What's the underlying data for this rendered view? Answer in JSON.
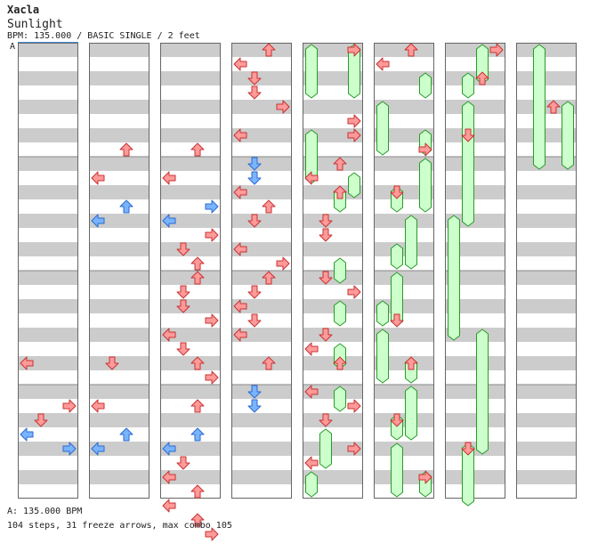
{
  "header": {
    "artist": "Xacla",
    "title": "Sunlight",
    "meta": "BPM: 135.000 / BASIC SINGLE / 2 feet"
  },
  "marker": "A",
  "footer": {
    "bpm_line": "A: 135.000 BPM",
    "stats_line": "104 steps, 31 freeze arrows, max combo 105"
  },
  "colors": {
    "arrow_red": "#ff9a9a",
    "arrow_red_stroke": "#c83232",
    "arrow_blue": "#7ab4ff",
    "arrow_blue_stroke": "#2a6ad0",
    "freeze_fill": "#ccffcc",
    "freeze_stroke": "#2a9a2a",
    "stripe_grey": "#cccccc",
    "marker_line": "#4a90d9"
  },
  "notes": [
    [
      0,
      0,
      "L",
      22,
      "r"
    ],
    [
      0,
      0,
      "R",
      25,
      "r"
    ],
    [
      0,
      0,
      "D",
      26,
      "r"
    ],
    [
      0,
      0,
      "L",
      27,
      "b"
    ],
    [
      0,
      0,
      "R",
      28,
      "b"
    ],
    [
      0,
      1,
      "U",
      7,
      "r"
    ],
    [
      0,
      1,
      "L",
      9,
      "r"
    ],
    [
      0,
      1,
      "U",
      11,
      "b"
    ],
    [
      0,
      1,
      "L",
      12,
      "b"
    ],
    [
      0,
      1,
      "D",
      22,
      "r"
    ],
    [
      0,
      1,
      "L",
      25,
      "r"
    ],
    [
      0,
      1,
      "U",
      27,
      "b"
    ],
    [
      0,
      1,
      "L",
      28,
      "b"
    ],
    [
      0,
      2,
      "U",
      7,
      "r"
    ],
    [
      0,
      2,
      "L",
      9,
      "r"
    ],
    [
      0,
      2,
      "R",
      11,
      "b"
    ],
    [
      0,
      2,
      "L",
      12,
      "b"
    ],
    [
      0,
      2,
      "R",
      13,
      "r"
    ],
    [
      0,
      2,
      "D",
      14,
      "r"
    ],
    [
      0,
      2,
      "U",
      15,
      "r"
    ],
    [
      0,
      2,
      "U",
      16,
      "r"
    ],
    [
      0,
      2,
      "D",
      17,
      "r"
    ],
    [
      0,
      2,
      "D",
      18,
      "r"
    ],
    [
      0,
      2,
      "R",
      19,
      "r"
    ],
    [
      0,
      2,
      "L",
      20,
      "r"
    ],
    [
      0,
      2,
      "D",
      21,
      "r"
    ],
    [
      0,
      2,
      "U",
      22,
      "r"
    ],
    [
      0,
      2,
      "R",
      23,
      "r"
    ],
    [
      0,
      2,
      "U",
      25,
      "r"
    ],
    [
      0,
      2,
      "U",
      27,
      "b"
    ],
    [
      0,
      2,
      "L",
      28,
      "b"
    ],
    [
      0,
      2,
      "D",
      29,
      "r"
    ],
    [
      0,
      2,
      "L",
      30,
      "r"
    ],
    [
      0,
      2,
      "U",
      31,
      "r"
    ],
    [
      0,
      2,
      "L",
      32,
      "r"
    ],
    [
      0,
      2,
      "U",
      33,
      "r"
    ],
    [
      0,
      2,
      "R",
      34,
      "r"
    ],
    [
      0,
      3,
      "U",
      0,
      "r"
    ],
    [
      0,
      3,
      "L",
      1,
      "r"
    ],
    [
      0,
      3,
      "D",
      2,
      "r"
    ],
    [
      0,
      3,
      "D",
      3,
      "r"
    ],
    [
      0,
      3,
      "R",
      4,
      "r"
    ],
    [
      0,
      3,
      "L",
      6,
      "r"
    ],
    [
      0,
      3,
      "D",
      8,
      "b"
    ],
    [
      0,
      3,
      "D",
      9,
      "b"
    ],
    [
      0,
      3,
      "L",
      10,
      "r"
    ],
    [
      0,
      3,
      "U",
      11,
      "r"
    ],
    [
      0,
      3,
      "D",
      12,
      "r"
    ],
    [
      0,
      3,
      "L",
      14,
      "r"
    ],
    [
      0,
      3,
      "R",
      15,
      "r"
    ],
    [
      0,
      3,
      "U",
      16,
      "r"
    ],
    [
      0,
      3,
      "D",
      17,
      "r"
    ],
    [
      0,
      3,
      "L",
      18,
      "r"
    ],
    [
      0,
      3,
      "D",
      19,
      "r"
    ],
    [
      0,
      3,
      "L",
      20,
      "r"
    ],
    [
      0,
      3,
      "U",
      22,
      "r"
    ],
    [
      0,
      3,
      "D",
      24,
      "b"
    ],
    [
      0,
      3,
      "D",
      25,
      "b"
    ],
    [
      1,
      0,
      "R",
      0,
      "r"
    ],
    [
      1,
      1,
      "D",
      7,
      "r"
    ],
    [
      1,
      1,
      "D",
      8,
      "r"
    ],
    [
      1,
      2,
      "U",
      9,
      "r"
    ],
    [
      1,
      3,
      "L",
      10,
      "r"
    ],
    [
      1,
      3,
      "D",
      11,
      "r"
    ],
    [
      1,
      4,
      "D",
      12,
      "r"
    ],
    [
      1,
      5,
      "D",
      13,
      "r"
    ],
    [
      1,
      6,
      "U",
      14,
      "r"
    ],
    [
      1,
      7,
      "R",
      15,
      "r"
    ],
    [
      1,
      8,
      "L",
      16,
      "r"
    ],
    [
      1,
      9,
      "D",
      17,
      "r"
    ],
    [
      1,
      10,
      "U",
      18,
      "r"
    ],
    [
      1,
      11,
      "R",
      19,
      "r"
    ],
    [
      1,
      12,
      "L",
      20,
      "r"
    ],
    [
      1,
      13,
      "D",
      21,
      "r"
    ],
    [
      1,
      14,
      "U",
      22,
      "r"
    ],
    [
      1,
      15,
      "R",
      23,
      "r"
    ],
    [
      1,
      16,
      "L",
      24,
      "r"
    ],
    [
      1,
      17,
      "D",
      25,
      "r"
    ],
    [
      1,
      18,
      "U",
      26,
      "r"
    ],
    [
      1,
      19,
      "R",
      27,
      "r"
    ],
    [
      1,
      20,
      "L",
      28,
      "r"
    ],
    [
      1,
      21,
      "D",
      29,
      "r"
    ],
    [
      1,
      22,
      "U",
      30,
      "r"
    ],
    [
      1,
      23,
      "R",
      31,
      "r"
    ],
    [
      1,
      24,
      "L",
      32,
      "r"
    ],
    [
      1,
      25,
      "D",
      33,
      "r"
    ],
    [
      1,
      26,
      "U",
      34,
      "r"
    ],
    [
      1,
      27,
      "L",
      0,
      "r"
    ],
    [
      1,
      28,
      "D",
      1,
      "r"
    ],
    [
      1,
      29,
      "U",
      2,
      "r"
    ],
    [
      1,
      30,
      "L",
      3,
      "r"
    ],
    [
      1,
      31,
      "D",
      4,
      "r"
    ],
    [
      1,
      32,
      "U",
      5,
      "r"
    ],
    [
      1,
      33,
      "L",
      6,
      "r"
    ],
    [
      1,
      34,
      "D",
      7,
      "r"
    ],
    [
      1,
      35,
      "U",
      8,
      "r"
    ],
    [
      1,
      36,
      "D",
      9,
      "r"
    ],
    [
      1,
      37,
      "L",
      10,
      "r"
    ],
    [
      1,
      38,
      "U",
      11,
      "r"
    ],
    [
      1,
      39,
      "D",
      12,
      "r"
    ],
    [
      1,
      40,
      "U",
      13,
      "r"
    ],
    [
      1,
      41,
      "L",
      14,
      "r"
    ],
    [
      1,
      42,
      "D",
      15,
      "r"
    ],
    [
      1,
      43,
      "U",
      16,
      "r"
    ],
    [
      1,
      44,
      "L",
      17,
      "r"
    ],
    [
      1,
      45,
      "D",
      18,
      "r"
    ],
    [
      1,
      46,
      "U",
      19,
      "r"
    ],
    [
      1,
      47,
      "R",
      20,
      "r"
    ],
    [
      1,
      48,
      "L",
      21,
      "r"
    ],
    [
      1,
      49,
      "D",
      22,
      "r"
    ],
    [
      1,
      50,
      "U",
      23,
      "r"
    ],
    [
      1,
      51,
      "R",
      24,
      "r"
    ],
    [
      1,
      52,
      "L",
      25,
      "r"
    ],
    [
      1,
      53,
      "D",
      26,
      "r"
    ],
    [
      1,
      54,
      "U",
      27,
      "r"
    ],
    [
      1,
      55,
      "R",
      28,
      "r"
    ],
    [
      1,
      56,
      "L",
      29,
      "r"
    ],
    [
      1,
      57,
      "D",
      30,
      "r"
    ],
    [
      1,
      58,
      "U",
      31,
      "r"
    ],
    [
      1,
      59,
      "R",
      32,
      "r"
    ],
    [
      1,
      60,
      "L",
      33,
      "r"
    ],
    [
      1,
      61,
      "D",
      34,
      "r"
    ]
  ],
  "freezes": [
    [
      4,
      0,
      0,
      3
    ],
    [
      4,
      3,
      0,
      3
    ],
    [
      4,
      0,
      6,
      9
    ],
    [
      4,
      3,
      9,
      10
    ],
    [
      4,
      2,
      10,
      11
    ],
    [
      4,
      2,
      15,
      16
    ],
    [
      4,
      2,
      18,
      19
    ],
    [
      4,
      2,
      21,
      22
    ],
    [
      4,
      2,
      24,
      25
    ],
    [
      4,
      1,
      27,
      29
    ],
    [
      4,
      0,
      30,
      31
    ],
    [
      5,
      0,
      4,
      7
    ],
    [
      5,
      3,
      6,
      7
    ],
    [
      5,
      3,
      2,
      3
    ],
    [
      5,
      3,
      8,
      11
    ],
    [
      5,
      1,
      10,
      11
    ],
    [
      5,
      2,
      12,
      15
    ],
    [
      5,
      1,
      14,
      15
    ],
    [
      5,
      1,
      16,
      19
    ],
    [
      5,
      0,
      18,
      19
    ],
    [
      5,
      0,
      20,
      23
    ],
    [
      5,
      2,
      22,
      23
    ],
    [
      5,
      2,
      24,
      27
    ],
    [
      5,
      1,
      26,
      27
    ],
    [
      5,
      1,
      28,
      31
    ],
    [
      5,
      3,
      30,
      31
    ],
    [
      6,
      2,
      0,
      2
    ],
    [
      6,
      1,
      2,
      3
    ],
    [
      6,
      1,
      4,
      12
    ],
    [
      6,
      0,
      12,
      20
    ],
    [
      6,
      2,
      20,
      28
    ],
    [
      6,
      1,
      28,
      34
    ],
    [
      7,
      1,
      0,
      8
    ],
    [
      7,
      3,
      4,
      8
    ]
  ],
  "freeze_continue": [
    [
      6,
      1,
      28,
      31
    ],
    [
      7,
      1,
      0,
      8
    ]
  ]
}
